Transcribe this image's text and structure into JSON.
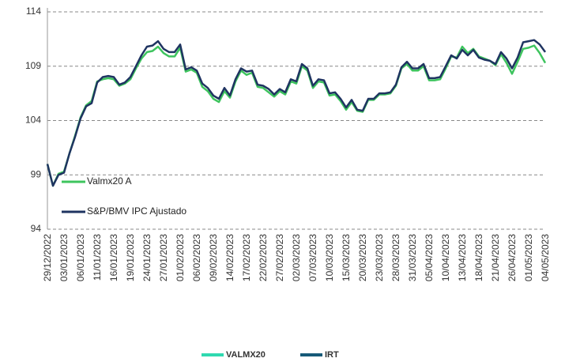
{
  "chart_data": {
    "type": "line",
    "categories": [
      "29/12/2022",
      null,
      null,
      "03/01/2023",
      null,
      null,
      "06/01/2023",
      null,
      null,
      "11/01/2023",
      null,
      null,
      "16/01/2023",
      null,
      null,
      "19/01/2023",
      null,
      null,
      "24/01/2023",
      null,
      null,
      "27/01/2023",
      null,
      null,
      "01/02/2023",
      null,
      null,
      "06/02/2023",
      null,
      null,
      "09/02/2023",
      null,
      null,
      "14/02/2023",
      null,
      null,
      "17/02/2023",
      null,
      null,
      "22/02/2023",
      null,
      null,
      "27/02/2023",
      null,
      null,
      "02/03/2023",
      null,
      null,
      "07/03/2023",
      null,
      null,
      "10/03/2023",
      null,
      null,
      "15/03/2023",
      null,
      null,
      "20/03/2023",
      null,
      null,
      "23/03/2023",
      null,
      null,
      "28/03/2023",
      null,
      null,
      "31/03/2023",
      null,
      null,
      "05/04/2023",
      null,
      null,
      "10/04/2023",
      null,
      null,
      "13/04/2023",
      null,
      null,
      "18/04/2023",
      null,
      null,
      "21/04/2023",
      null,
      null,
      "26/04/2023",
      null,
      null,
      "01/05/2023",
      null,
      null,
      "04/05/2023"
    ],
    "series": [
      {
        "name": "Valmx20 A",
        "color": "#3ec45e",
        "values": [
          100.0,
          98.0,
          99.1,
          99.3,
          101.0,
          102.6,
          104.3,
          105.4,
          105.8,
          107.6,
          107.8,
          107.9,
          107.8,
          107.2,
          107.4,
          107.8,
          108.8,
          109.7,
          110.3,
          110.4,
          110.8,
          110.2,
          109.9,
          109.9,
          110.7,
          108.5,
          108.7,
          108.4,
          107.1,
          106.7,
          106.0,
          105.7,
          106.7,
          106.1,
          107.6,
          108.6,
          108.2,
          108.4,
          107.1,
          107.0,
          106.6,
          106.2,
          106.7,
          106.4,
          107.6,
          107.4,
          109.0,
          108.6,
          107.0,
          107.6,
          107.5,
          106.3,
          106.4,
          105.8,
          105.0,
          105.7,
          104.9,
          104.8,
          105.9,
          105.9,
          106.4,
          106.4,
          106.5,
          107.2,
          108.8,
          109.2,
          108.6,
          108.6,
          109.0,
          107.7,
          107.7,
          107.8,
          108.8,
          109.9,
          109.8,
          110.8,
          110.2,
          110.6,
          109.9,
          109.7,
          109.5,
          109.1,
          110.1,
          109.3,
          108.3,
          109.4,
          110.6,
          110.7,
          110.9,
          110.2,
          109.3
        ]
      },
      {
        "name": "S&P/BMV IPC Ajustado",
        "color": "#1f3461",
        "values": [
          100.0,
          98.0,
          99.0,
          99.2,
          101.0,
          102.5,
          104.2,
          105.3,
          105.6,
          107.5,
          108.0,
          108.1,
          108.0,
          107.3,
          107.5,
          108.0,
          109.0,
          110.0,
          110.8,
          110.9,
          111.3,
          110.6,
          110.3,
          110.3,
          111.0,
          108.7,
          108.9,
          108.6,
          107.4,
          107.0,
          106.3,
          106.0,
          107.0,
          106.3,
          107.8,
          108.8,
          108.5,
          108.6,
          107.3,
          107.2,
          106.9,
          106.4,
          106.9,
          106.6,
          107.8,
          107.6,
          109.2,
          108.8,
          107.2,
          107.8,
          107.7,
          106.5,
          106.6,
          106.0,
          105.2,
          105.9,
          105.0,
          104.9,
          106.0,
          106.0,
          106.5,
          106.5,
          106.6,
          107.3,
          108.9,
          109.4,
          108.8,
          108.8,
          109.2,
          107.9,
          107.9,
          108.0,
          109.0,
          110.0,
          109.7,
          110.5,
          110.0,
          110.5,
          109.8,
          109.6,
          109.5,
          109.2,
          110.3,
          109.7,
          108.8,
          109.8,
          111.2,
          111.3,
          111.4,
          111.0,
          110.3
        ]
      }
    ],
    "ylim": [
      94,
      114
    ],
    "yticks": [
      94,
      99,
      104,
      109,
      114
    ],
    "grid": true,
    "outer_legend": [
      {
        "name": "VALMX20",
        "color": "#2fd9b0"
      },
      {
        "name": "IRT",
        "color": "#175a78"
      }
    ]
  }
}
